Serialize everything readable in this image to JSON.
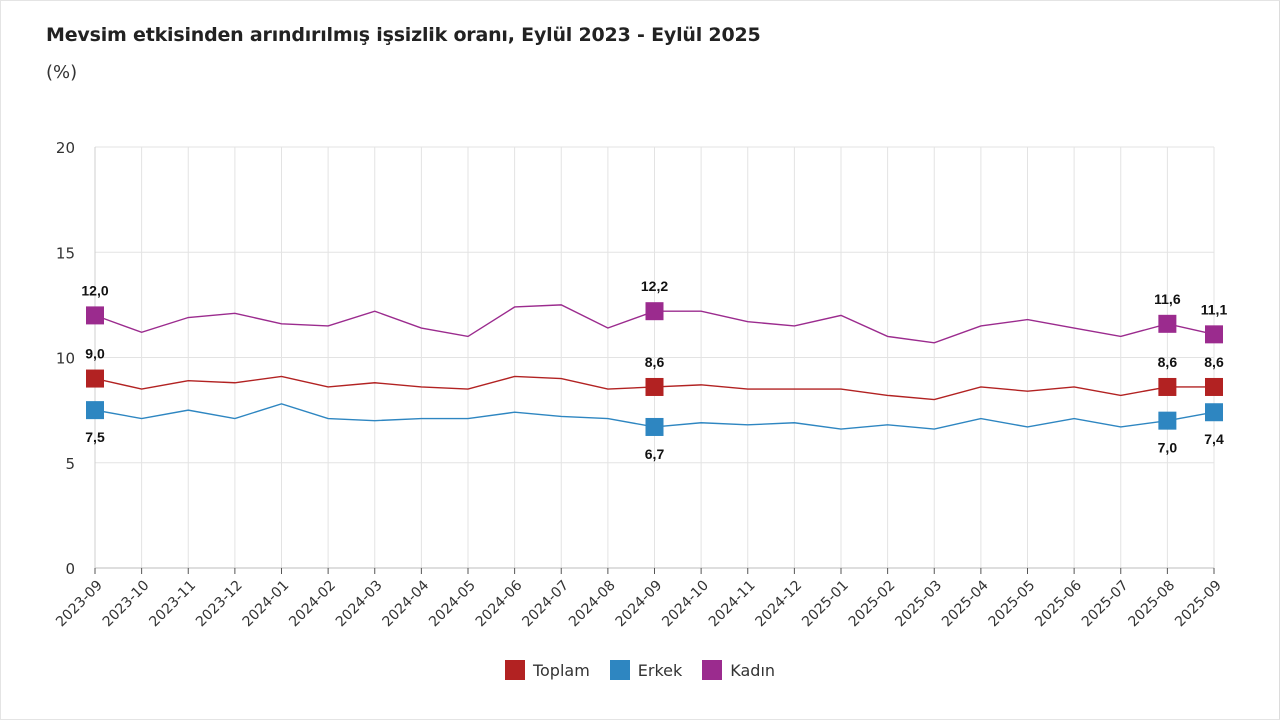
{
  "chart_data": {
    "type": "line",
    "title": "Mevsim etkisinden arındırılmış işsizlik oranı, Eylül 2023 - Eylül 2025",
    "unit_label": "(%)",
    "ylim": [
      0,
      20
    ],
    "yticks": [
      0,
      5,
      10,
      15,
      20
    ],
    "grid": true,
    "legend_position": "bottom",
    "categories": [
      "2023-09",
      "2023-10",
      "2023-11",
      "2023-12",
      "2024-01",
      "2024-02",
      "2024-03",
      "2024-04",
      "2024-05",
      "2024-06",
      "2024-07",
      "2024-08",
      "2024-09",
      "2024-10",
      "2024-11",
      "2024-12",
      "2025-01",
      "2025-02",
      "2025-03",
      "2025-04",
      "2025-05",
      "2025-06",
      "2025-07",
      "2025-08",
      "2025-09"
    ],
    "series": [
      {
        "name": "Toplam",
        "color": "#b22222",
        "values": [
          9.0,
          8.5,
          8.9,
          8.8,
          9.1,
          8.6,
          8.8,
          8.6,
          8.5,
          9.1,
          9.0,
          8.5,
          8.6,
          8.7,
          8.5,
          8.5,
          8.5,
          8.2,
          8.0,
          8.6,
          8.4,
          8.6,
          8.2,
          8.6,
          8.6
        ],
        "labeled_points": [
          {
            "index": 0,
            "label": "9,0"
          },
          {
            "index": 12,
            "label": "8,6"
          },
          {
            "index": 23,
            "label": "8,6"
          },
          {
            "index": 24,
            "label": "8,6"
          }
        ],
        "label_side": "above"
      },
      {
        "name": "Erkek",
        "color": "#2e86c1",
        "values": [
          7.5,
          7.1,
          7.5,
          7.1,
          7.8,
          7.1,
          7.0,
          7.1,
          7.1,
          7.4,
          7.2,
          7.1,
          6.7,
          6.9,
          6.8,
          6.9,
          6.6,
          6.8,
          6.6,
          7.1,
          6.7,
          7.1,
          6.7,
          7.0,
          7.4
        ],
        "labeled_points": [
          {
            "index": 0,
            "label": "7,5"
          },
          {
            "index": 12,
            "label": "6,7"
          },
          {
            "index": 23,
            "label": "7,0"
          },
          {
            "index": 24,
            "label": "7,4"
          }
        ],
        "label_side": "below"
      },
      {
        "name": "Kadın",
        "color": "#9b2b8e",
        "values": [
          12.0,
          11.2,
          11.9,
          12.1,
          11.6,
          11.5,
          12.2,
          11.4,
          11.0,
          12.4,
          12.5,
          11.4,
          12.2,
          12.2,
          11.7,
          11.5,
          12.0,
          11.0,
          10.7,
          11.5,
          11.8,
          11.4,
          11.0,
          11.6,
          11.1
        ],
        "labeled_points": [
          {
            "index": 0,
            "label": "12,0"
          },
          {
            "index": 12,
            "label": "12,2"
          },
          {
            "index": 23,
            "label": "11,6"
          },
          {
            "index": 24,
            "label": "11,1"
          }
        ],
        "label_side": "above"
      }
    ]
  }
}
